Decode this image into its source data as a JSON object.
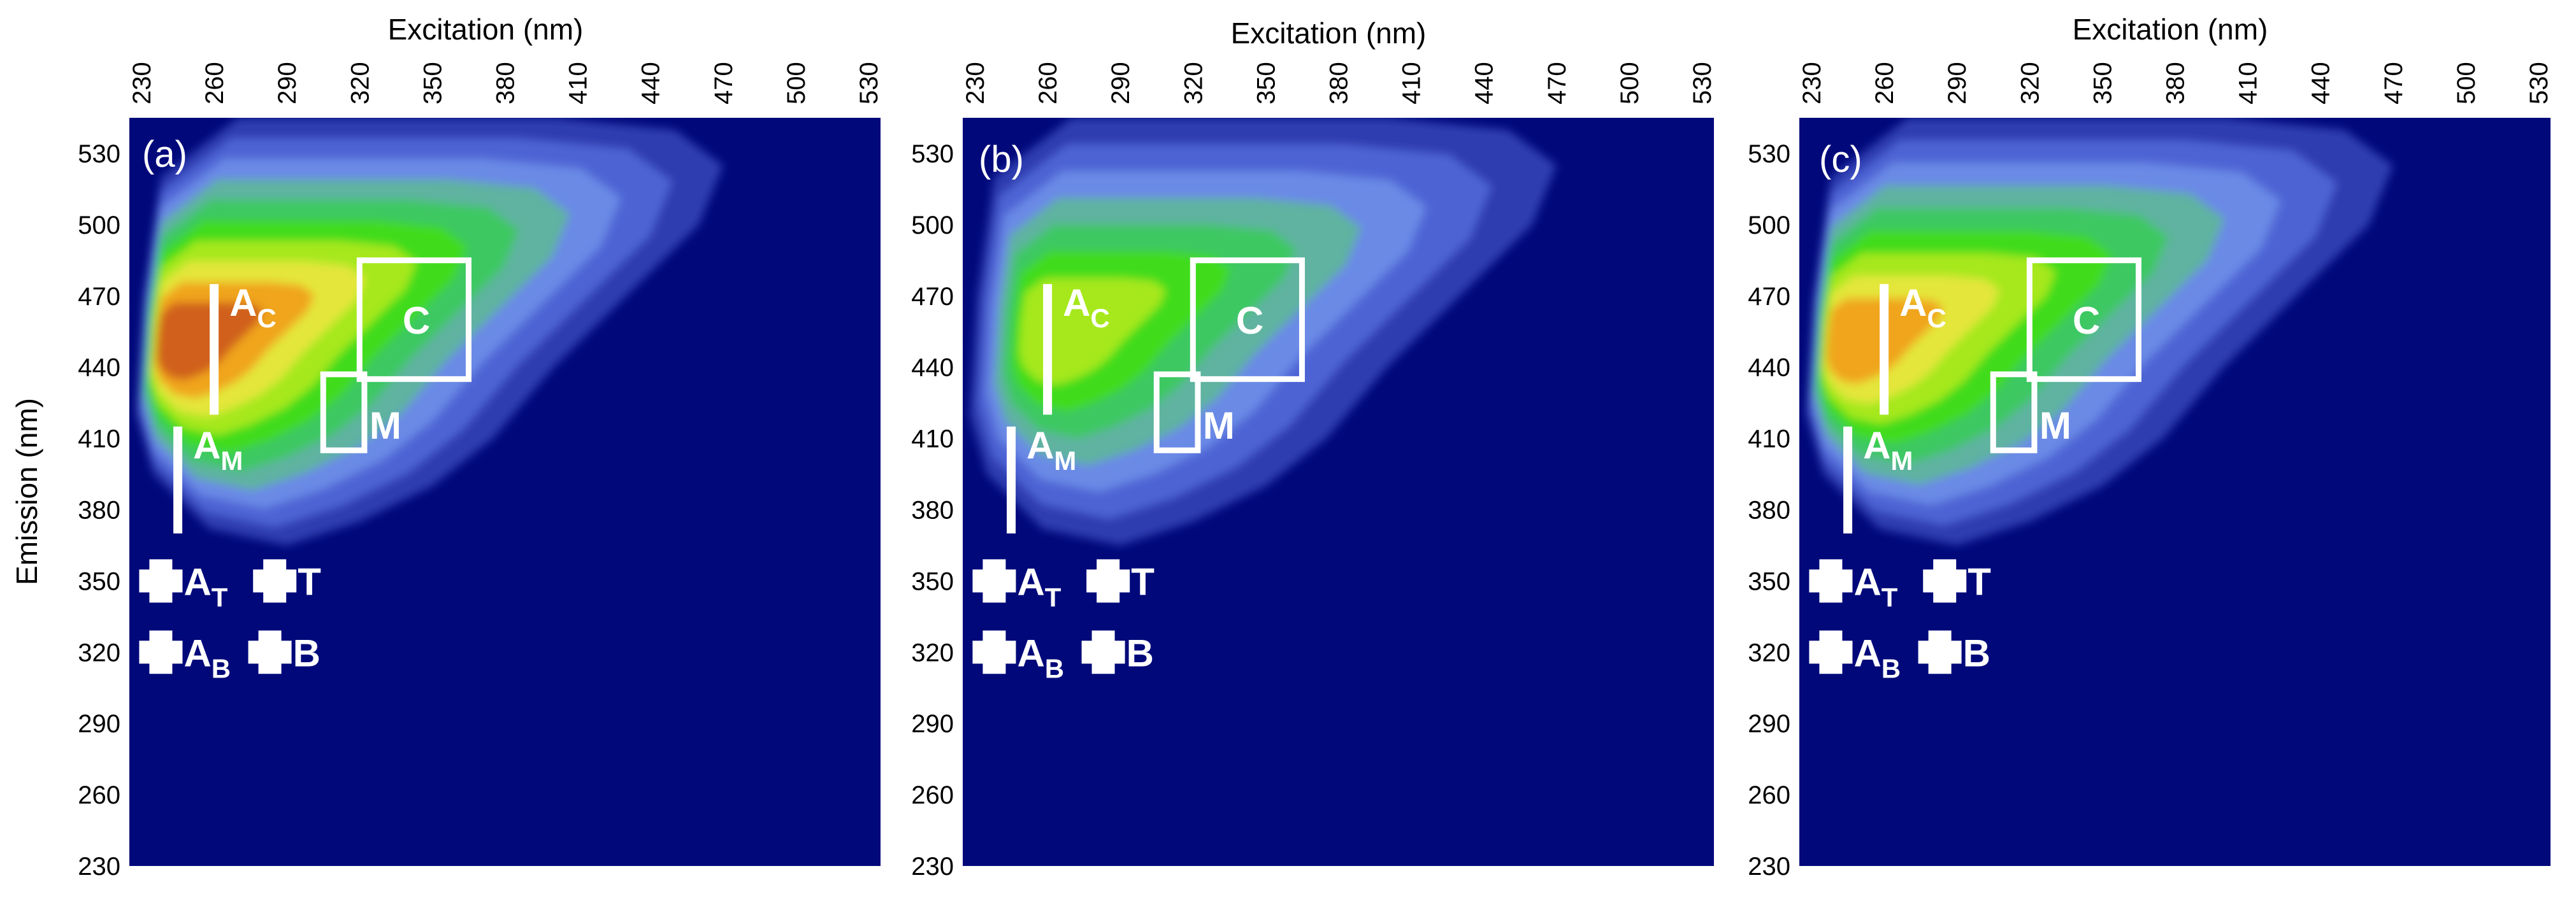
{
  "colors": {
    "background": "#01097a",
    "contour_levels": [
      "#01097a",
      "#2e3db0",
      "#4d63d4",
      "#6b8ae6",
      "#5fb3a0",
      "#3ec862",
      "#3fdc1f",
      "#a6e81f",
      "#e4e63a",
      "#f0a51d",
      "#d0601c"
    ],
    "marker": "#ffffff"
  },
  "chart_data": [
    {
      "type": "heatmap",
      "panel_label": "(a)",
      "xlabel": "Excitation (nm)",
      "ylabel": "Emission (nm)",
      "x_ticks": [
        "230",
        "260",
        "290",
        "320",
        "350",
        "380",
        "410",
        "440",
        "470",
        "500",
        "530"
      ],
      "y_ticks": [
        "530",
        "500",
        "470",
        "440",
        "410",
        "380",
        "350",
        "320",
        "290",
        "260",
        "230"
      ],
      "xlim": [
        225,
        535
      ],
      "ylim": [
        230,
        545
      ],
      "peak": {
        "x": 238,
        "y": 450,
        "level": 10
      },
      "regions": [
        {
          "label": "A",
          "sub": "C",
          "kind": "line",
          "x": 260,
          "y": [
            420,
            475
          ]
        },
        {
          "label": "A",
          "sub": "M",
          "kind": "line",
          "x": 245,
          "y": [
            370,
            415
          ]
        },
        {
          "label": "C",
          "sub": "",
          "kind": "box",
          "x": [
            320,
            365
          ],
          "y": [
            435,
            485
          ]
        },
        {
          "label": "M",
          "sub": "",
          "kind": "box",
          "x": [
            305,
            322
          ],
          "y": [
            405,
            437
          ]
        },
        {
          "label": "A",
          "sub": "T",
          "kind": "cross",
          "x": 238,
          "y": 350
        },
        {
          "label": "T",
          "sub": "",
          "kind": "cross",
          "x": 285,
          "y": 350
        },
        {
          "label": "A",
          "sub": "B",
          "kind": "cross",
          "x": 238,
          "y": 320
        },
        {
          "label": "B",
          "sub": "",
          "kind": "cross",
          "x": 283,
          "y": 320
        }
      ]
    },
    {
      "type": "heatmap",
      "panel_label": "(b)",
      "xlabel": "Excitation (nm)",
      "ylabel": "",
      "x_ticks": [
        "230",
        "260",
        "290",
        "320",
        "350",
        "380",
        "410",
        "440",
        "470",
        "500",
        "530"
      ],
      "y_ticks": [
        "530",
        "500",
        "470",
        "440",
        "410",
        "380",
        "350",
        "320",
        "290",
        "260",
        "230"
      ],
      "xlim": [
        225,
        535
      ],
      "ylim": [
        230,
        545
      ],
      "peak": {
        "x": 255,
        "y": 455,
        "level": 7
      },
      "regions": [
        {
          "label": "A",
          "sub": "C",
          "kind": "line",
          "x": 260,
          "y": [
            420,
            475
          ]
        },
        {
          "label": "A",
          "sub": "M",
          "kind": "line",
          "x": 245,
          "y": [
            370,
            415
          ]
        },
        {
          "label": "C",
          "sub": "",
          "kind": "box",
          "x": [
            320,
            365
          ],
          "y": [
            435,
            485
          ]
        },
        {
          "label": "M",
          "sub": "",
          "kind": "box",
          "x": [
            305,
            322
          ],
          "y": [
            405,
            437
          ]
        },
        {
          "label": "A",
          "sub": "T",
          "kind": "cross",
          "x": 238,
          "y": 350
        },
        {
          "label": "T",
          "sub": "",
          "kind": "cross",
          "x": 285,
          "y": 350
        },
        {
          "label": "A",
          "sub": "B",
          "kind": "cross",
          "x": 238,
          "y": 320
        },
        {
          "label": "B",
          "sub": "",
          "kind": "cross",
          "x": 283,
          "y": 320
        }
      ]
    },
    {
      "type": "heatmap",
      "panel_label": "(c)",
      "xlabel": "Excitation (nm)",
      "ylabel": "",
      "x_ticks": [
        "230",
        "260",
        "290",
        "320",
        "350",
        "380",
        "410",
        "440",
        "470",
        "500",
        "530"
      ],
      "y_ticks": [
        "530",
        "500",
        "470",
        "440",
        "410",
        "380",
        "350",
        "320",
        "290",
        "260",
        "230"
      ],
      "xlim": [
        225,
        535
      ],
      "ylim": [
        230,
        545
      ],
      "peak": {
        "x": 238,
        "y": 450,
        "level": 9
      },
      "regions": [
        {
          "label": "A",
          "sub": "C",
          "kind": "line",
          "x": 260,
          "y": [
            420,
            475
          ]
        },
        {
          "label": "A",
          "sub": "M",
          "kind": "line",
          "x": 245,
          "y": [
            370,
            415
          ]
        },
        {
          "label": "C",
          "sub": "",
          "kind": "box",
          "x": [
            320,
            365
          ],
          "y": [
            435,
            485
          ]
        },
        {
          "label": "M",
          "sub": "",
          "kind": "box",
          "x": [
            305,
            322
          ],
          "y": [
            405,
            437
          ]
        },
        {
          "label": "A",
          "sub": "T",
          "kind": "cross",
          "x": 238,
          "y": 350
        },
        {
          "label": "T",
          "sub": "",
          "kind": "cross",
          "x": 285,
          "y": 350
        },
        {
          "label": "A",
          "sub": "B",
          "kind": "cross",
          "x": 238,
          "y": 320
        },
        {
          "label": "B",
          "sub": "",
          "kind": "cross",
          "x": 283,
          "y": 320
        }
      ]
    }
  ]
}
